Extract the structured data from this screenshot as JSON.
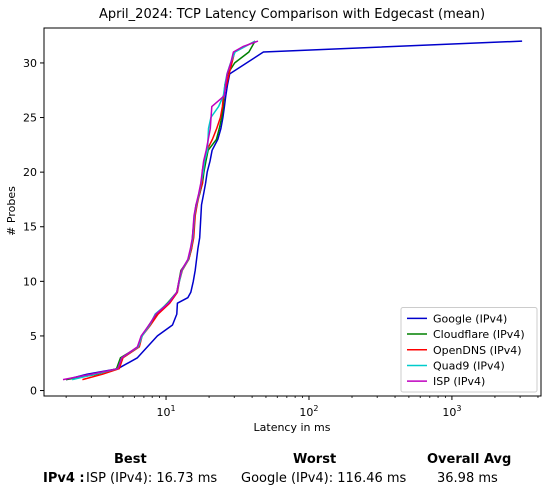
{
  "chart_data": {
    "type": "line",
    "title": "April_2024: TCP Latency Comparison with Edgecast (mean)",
    "xlabel": "Latency in ms",
    "ylabel": "# Probes",
    "x_scale": "log",
    "xlim": [
      1.4,
      4200
    ],
    "ylim": [
      -0.5,
      33.2
    ],
    "x_ticks": [
      {
        "value": 10,
        "base": "10",
        "exp": "1"
      },
      {
        "value": 100,
        "base": "10",
        "exp": "2"
      },
      {
        "value": 1000,
        "base": "10",
        "exp": "3"
      }
    ],
    "y_ticks": [
      0,
      5,
      10,
      15,
      20,
      25,
      30
    ],
    "grid": false,
    "legend_position": "lower-right",
    "series": [
      {
        "name": "Google (IPv4)",
        "color": "#0000cc",
        "points": [
          [
            2.0,
            1
          ],
          [
            2.8,
            1.5
          ],
          [
            4.6,
            2
          ],
          [
            6.3,
            3
          ],
          [
            8.7,
            5
          ],
          [
            11.1,
            6
          ],
          [
            11.9,
            7
          ],
          [
            12.0,
            8
          ],
          [
            14.2,
            8.5
          ],
          [
            14.9,
            9
          ],
          [
            15.5,
            10
          ],
          [
            16.0,
            11
          ],
          [
            16.7,
            13
          ],
          [
            17.2,
            14
          ],
          [
            17.7,
            17
          ],
          [
            18.3,
            18
          ],
          [
            18.9,
            19
          ],
          [
            19.4,
            20
          ],
          [
            20.3,
            21
          ],
          [
            21.0,
            22
          ],
          [
            23.0,
            23
          ],
          [
            24.2,
            24
          ],
          [
            25.0,
            25
          ],
          [
            25.6,
            26
          ],
          [
            26.2,
            27
          ],
          [
            26.9,
            28
          ],
          [
            27.9,
            29
          ],
          [
            48,
            31
          ],
          [
            3100,
            32
          ]
        ]
      },
      {
        "name": "Cloudflare (IPv4)",
        "color": "#008000",
        "points": [
          [
            2.0,
            1
          ],
          [
            3.3,
            1.5
          ],
          [
            4.5,
            2
          ],
          [
            4.8,
            3
          ],
          [
            6.4,
            4
          ],
          [
            6.8,
            5
          ],
          [
            7.6,
            6
          ],
          [
            8.6,
            7
          ],
          [
            10.2,
            8
          ],
          [
            11.9,
            9
          ],
          [
            12.3,
            10
          ],
          [
            12.7,
            11
          ],
          [
            14.4,
            12
          ],
          [
            15.1,
            13
          ],
          [
            15.3,
            14
          ],
          [
            15.8,
            16
          ],
          [
            16.2,
            17
          ],
          [
            17.2,
            18
          ],
          [
            18.0,
            19
          ],
          [
            18.4,
            20
          ],
          [
            19.0,
            21
          ],
          [
            19.7,
            22
          ],
          [
            22.5,
            23
          ],
          [
            23.6,
            24
          ],
          [
            24.5,
            25
          ],
          [
            25.1,
            26
          ],
          [
            25.8,
            28
          ],
          [
            27.0,
            29
          ],
          [
            30.2,
            30
          ],
          [
            38,
            31
          ],
          [
            42,
            32
          ]
        ]
      },
      {
        "name": "OpenDNS (IPv4)",
        "color": "#ff0000",
        "points": [
          [
            2.6,
            1
          ],
          [
            3.6,
            1.5
          ],
          [
            4.7,
            2
          ],
          [
            5.0,
            3
          ],
          [
            6.5,
            4
          ],
          [
            6.8,
            5
          ],
          [
            7.8,
            6
          ],
          [
            8.8,
            7
          ],
          [
            10.6,
            8
          ],
          [
            12.0,
            9
          ],
          [
            12.4,
            10
          ],
          [
            13.0,
            11
          ],
          [
            14.4,
            12
          ],
          [
            15.1,
            13
          ],
          [
            15.6,
            14
          ],
          [
            16.0,
            16
          ],
          [
            16.5,
            17
          ],
          [
            17.1,
            18
          ],
          [
            18.0,
            19
          ],
          [
            17.9,
            20
          ],
          [
            18.4,
            21
          ],
          [
            19.3,
            22
          ],
          [
            21.1,
            23
          ],
          [
            22.6,
            24
          ],
          [
            24.0,
            25
          ],
          [
            24.8,
            26
          ],
          [
            25.2,
            27
          ],
          [
            26.5,
            28
          ],
          [
            27.6,
            29
          ],
          [
            30.2,
            31
          ],
          [
            42,
            32
          ]
        ]
      },
      {
        "name": "Quad9 (IPv4)",
        "color": "#00cccc",
        "points": [
          [
            2.2,
            1
          ],
          [
            3.2,
            1.5
          ],
          [
            4.6,
            2
          ],
          [
            4.9,
            3
          ],
          [
            6.4,
            4
          ],
          [
            6.8,
            5
          ],
          [
            7.7,
            6
          ],
          [
            8.4,
            7
          ],
          [
            10.3,
            8
          ],
          [
            11.9,
            9
          ],
          [
            12.4,
            10
          ],
          [
            12.9,
            11
          ],
          [
            14.3,
            12
          ],
          [
            14.9,
            13
          ],
          [
            15.4,
            14
          ],
          [
            15.8,
            16
          ],
          [
            16.3,
            17
          ],
          [
            17.0,
            18
          ],
          [
            17.6,
            19
          ],
          [
            18.2,
            20
          ],
          [
            18.6,
            21
          ],
          [
            19.5,
            22
          ],
          [
            19.8,
            24
          ],
          [
            20.6,
            25
          ],
          [
            23.3,
            26
          ],
          [
            25.2,
            27
          ],
          [
            25.8,
            28
          ],
          [
            26.7,
            29
          ],
          [
            28.3,
            30
          ],
          [
            30.4,
            31
          ],
          [
            42,
            32
          ]
        ]
      },
      {
        "name": "ISP (IPv4)",
        "color": "#bf00bf",
        "points": [
          [
            1.9,
            1
          ],
          [
            3.0,
            1.5
          ],
          [
            4.6,
            2
          ],
          [
            4.9,
            3
          ],
          [
            6.3,
            4
          ],
          [
            6.7,
            5
          ],
          [
            7.6,
            6
          ],
          [
            8.5,
            7
          ],
          [
            10.4,
            8
          ],
          [
            11.9,
            9
          ],
          [
            12.3,
            10
          ],
          [
            12.8,
            11
          ],
          [
            14.2,
            12
          ],
          [
            14.8,
            13
          ],
          [
            15.3,
            14
          ],
          [
            15.7,
            16
          ],
          [
            16.2,
            17
          ],
          [
            16.9,
            18
          ],
          [
            17.5,
            19
          ],
          [
            17.9,
            20
          ],
          [
            18.3,
            21
          ],
          [
            19.1,
            22
          ],
          [
            20.4,
            24
          ],
          [
            20.9,
            26
          ],
          [
            25.6,
            27
          ],
          [
            26.1,
            28
          ],
          [
            26.8,
            29
          ],
          [
            28.4,
            30
          ],
          [
            29.6,
            31
          ],
          [
            34.5,
            31.5
          ],
          [
            44,
            32
          ]
        ]
      }
    ]
  },
  "stats": {
    "header_best": "Best",
    "header_worst": "Worst",
    "header_avg": "Overall Avg",
    "row_label": "IPv4 :",
    "best": "ISP (IPv4): 16.73 ms",
    "worst": "Google (IPv4): 116.46 ms",
    "avg": "36.98 ms"
  }
}
